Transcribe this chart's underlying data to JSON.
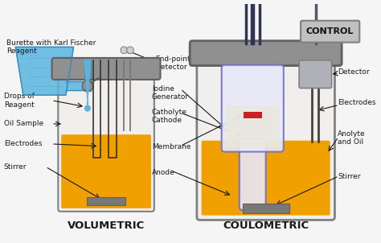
{
  "bg_color": "#f5f5f5",
  "title_volumetric": "VOLUMETRIC",
  "title_coulometric": "COULOMETRIC",
  "label_burette": "Burette with Karl Fischer\nReagent",
  "label_endpoint": "End-point\nDetector",
  "label_drops": "Drops of\nReagent",
  "label_oil": "Oil Sample",
  "label_electrodes_v": "Electrodes",
  "label_stirrer_v": "Stirrer",
  "label_iodine": "Iodine\nGenerator",
  "label_catholyte": "Catholyte\nCathode",
  "label_membrane": "Membrane",
  "label_anode": "Anode",
  "label_electrodes_c": "Electrodes",
  "label_anolyte": "Anolyte\nand Oil",
  "label_stirrer_c": "Stirrer",
  "label_control": "CONTROL",
  "label_detector": "Detector",
  "burette_blue": "#5ab5e0",
  "burette_dark": "#3a8ab8",
  "liquid_orange": "#f0a000",
  "liquid_dark": "#c07800",
  "vessel_fill": "#f0efee",
  "vessel_edge": "#808080",
  "collar_fill": "#909090",
  "collar_edge": "#606060",
  "stirrer_fill": "#787878",
  "probe_fill": "#d0d0d0",
  "probe_edge": "#888888",
  "inner_fill": "#e8e8f8",
  "inner_edge": "#7070c0",
  "inner_liquid": "#d0d0e8",
  "membrane_red": "#cc2020",
  "ctrl_fill": "#c0c0c0",
  "ctrl_edge": "#808080",
  "det_fill": "#b0b0b8",
  "drop_blue": "#60b0e0",
  "text_color": "#1a1a1a",
  "arrow_color": "#1a1a1a",
  "fs_label": 6.5,
  "fs_title": 9.5
}
